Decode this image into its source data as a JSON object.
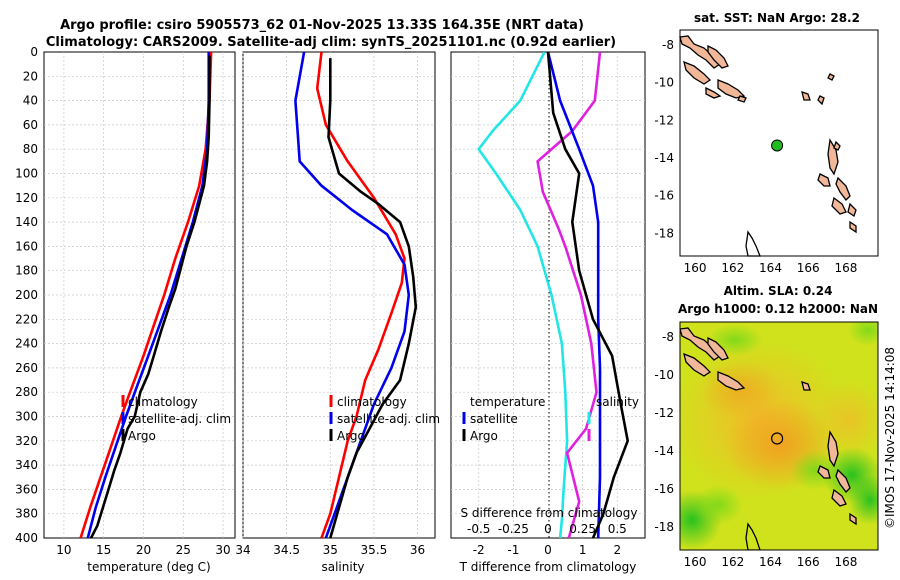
{
  "header": {
    "title_line1": "Argo profile: csiro 5905573_62 01-Nov-2025 13.33S 164.35E (NRT data)",
    "title_line2": "Climatology: CARS2009. Satellite-adj clim: synTS_20251101.nc (0.92d earlier)"
  },
  "colors": {
    "climatology": "#ff0000",
    "satellite": "#0000ee",
    "argo": "#000000",
    "temperature_diff": "#22e5e5",
    "salinity_diff": "#e020e0"
  },
  "legends": {
    "panel1": [
      "climatology",
      "satellite-adj. clim",
      "Argo"
    ],
    "panel2": [
      "climatology",
      "satellite-adj. clim",
      "Argo"
    ],
    "panel3_left": [
      "temperature",
      "satellite",
      "Argo"
    ],
    "panel3_right": [
      "salinity"
    ]
  },
  "map_top": {
    "title": "sat. SST: NaN Argo: 28.2",
    "marker": "float-position",
    "lon": 164.35,
    "lat": -13.33
  },
  "map_bottom": {
    "title_line1": "Altim. SLA: 0.24",
    "title_line2": "Argo h1000: 0.12 h2000: NaN",
    "lon": 164.35,
    "lat": -13.33
  },
  "credit": "©IMOS 17-Nov-2025 14:14:08",
  "chart_data": [
    {
      "type": "line",
      "name": "temperature-profile",
      "xlabel": "temperature (deg C)",
      "ylabel": "pressure",
      "xlim": [
        7.5,
        31.5
      ],
      "ylim": [
        400,
        0
      ],
      "xticks": [
        "10",
        "15",
        "20",
        "25",
        "30"
      ],
      "xtick_values": [
        10,
        15,
        20,
        25,
        30
      ],
      "yticks": [
        "0",
        "20",
        "40",
        "60",
        "80",
        "100",
        "120",
        "140",
        "160",
        "180",
        "200",
        "220",
        "240",
        "260",
        "280",
        "300",
        "320",
        "340",
        "360",
        "380",
        "400"
      ],
      "series": [
        {
          "name": "climatology",
          "color": "#ff0000",
          "x": [
            28.5,
            28.3,
            27.8,
            27.0,
            25.6,
            24.0,
            22.6,
            21.3,
            20.0,
            18.6,
            17.2,
            15.9,
            14.6,
            13.3,
            12.1
          ],
          "y": [
            0,
            40,
            80,
            110,
            140,
            170,
            200,
            225,
            250,
            275,
            300,
            325,
            350,
            375,
            400
          ]
        },
        {
          "name": "satellite-adj. clim",
          "color": "#0000ee",
          "x": [
            28.2,
            28.2,
            28.0,
            27.4,
            26.2,
            24.8,
            23.4,
            22.0,
            20.6,
            19.2,
            17.8,
            16.5,
            15.2,
            14.0,
            13.0
          ],
          "y": [
            0,
            40,
            80,
            110,
            140,
            170,
            200,
            225,
            250,
            275,
            300,
            325,
            350,
            375,
            400
          ]
        },
        {
          "name": "Argo",
          "color": "#000000",
          "x": [
            28.3,
            28.3,
            28.2,
            28.0,
            27.6,
            27.0,
            26.4,
            25.4,
            24.8,
            24.0,
            23.2,
            22.2,
            21.3,
            20.6,
            19.6,
            18.9,
            18.0,
            17.1,
            16.3,
            15.6,
            14.9,
            14.2,
            13.4
          ],
          "y": [
            3,
            40,
            70,
            90,
            110,
            125,
            140,
            160,
            175,
            195,
            210,
            230,
            250,
            265,
            280,
            300,
            310,
            330,
            345,
            360,
            375,
            390,
            400
          ]
        }
      ]
    },
    {
      "type": "line",
      "name": "salinity-profile",
      "xlabel": "salinity",
      "ylabel": "pressure",
      "xlim": [
        34.0,
        36.2
      ],
      "ylim": [
        400,
        0
      ],
      "xticks": [
        "34",
        "34.5",
        "35",
        "35.5",
        "36"
      ],
      "xtick_values": [
        34.0,
        34.5,
        35.0,
        35.5,
        36.0
      ],
      "series": [
        {
          "name": "climatology",
          "color": "#ff0000",
          "x": [
            34.9,
            34.85,
            34.95,
            35.2,
            35.5,
            35.75,
            35.85,
            35.82,
            35.7,
            35.55,
            35.4,
            35.3,
            35.2,
            35.1,
            35.0,
            34.9
          ],
          "y": [
            0,
            30,
            60,
            90,
            120,
            150,
            170,
            190,
            215,
            245,
            270,
            300,
            320,
            350,
            380,
            400
          ]
        },
        {
          "name": "satellite-adj. clim",
          "color": "#0000ee",
          "x": [
            34.7,
            34.6,
            34.63,
            34.65,
            34.9,
            35.25,
            35.65,
            35.85,
            35.9,
            35.85,
            35.7,
            35.5,
            35.35,
            35.2,
            35.05,
            34.95
          ],
          "y": [
            0,
            40,
            70,
            90,
            110,
            130,
            150,
            175,
            200,
            230,
            260,
            290,
            320,
            350,
            380,
            400
          ]
        },
        {
          "name": "Argo",
          "color": "#000000",
          "x": [
            35.0,
            35.0,
            34.98,
            35.1,
            35.35,
            35.55,
            35.8,
            35.9,
            35.95,
            35.98,
            35.9,
            35.8,
            35.6,
            35.45,
            35.3,
            35.2,
            35.1,
            35.0
          ],
          "y": [
            5,
            40,
            70,
            100,
            115,
            125,
            140,
            160,
            185,
            210,
            240,
            270,
            290,
            310,
            330,
            350,
            375,
            400
          ]
        }
      ]
    },
    {
      "type": "line",
      "name": "difference-profile",
      "xlabel": "T difference from climatology",
      "xlabel_top": "S difference from climatology",
      "xlim": [
        -2.8,
        2.8
      ],
      "ylim": [
        400,
        0
      ],
      "xticks": [
        "-2",
        "-1",
        "0",
        "1",
        "2"
      ],
      "xtick_values": [
        -2,
        -1,
        0,
        1,
        2
      ],
      "xticks_top": [
        "-0.5",
        "-0.25",
        "0",
        "0.25",
        "0.5"
      ],
      "xtick_top_values": [
        -2,
        -1,
        0,
        1,
        2
      ],
      "series": [
        {
          "name": "temperature",
          "color": "#22e5e5",
          "x": [
            -0.1,
            -0.8,
            -1.6,
            -2.0,
            -1.5,
            -0.8,
            -0.3,
            0.1,
            0.4,
            0.5,
            0.55,
            0.45,
            0.4,
            0.35
          ],
          "y": [
            0,
            40,
            65,
            80,
            100,
            130,
            160,
            200,
            240,
            280,
            320,
            360,
            385,
            400
          ]
        },
        {
          "name": "salinity",
          "color": "#e020e0",
          "x": [
            1.5,
            1.35,
            0.7,
            -0.3,
            -0.15,
            0.3,
            0.5,
            0.95,
            1.25,
            1.4,
            1.1,
            0.55,
            0.9,
            0.6
          ],
          "y": [
            0,
            40,
            65,
            90,
            115,
            145,
            160,
            200,
            240,
            280,
            310,
            330,
            370,
            400
          ]
        },
        {
          "name": "satellite",
          "color": "#0000ee",
          "x": [
            0.0,
            0.35,
            0.9,
            1.3,
            1.45,
            1.45,
            1.45,
            1.5,
            1.5,
            1.5,
            1.45
          ],
          "y": [
            0,
            40,
            80,
            110,
            140,
            180,
            220,
            260,
            300,
            350,
            400
          ]
        },
        {
          "name": "Argo",
          "color": "#000000",
          "x": [
            0.0,
            0.15,
            0.5,
            0.9,
            0.7,
            0.9,
            1.3,
            1.85,
            2.1,
            2.3,
            1.9,
            1.6,
            1.3
          ],
          "y": [
            0,
            50,
            80,
            100,
            140,
            180,
            220,
            250,
            290,
            320,
            350,
            380,
            400
          ]
        }
      ]
    }
  ],
  "map_axes": {
    "xticks": [
      "160",
      "162",
      "164",
      "166",
      "168"
    ],
    "xtick_values": [
      160,
      162,
      164,
      166,
      168
    ],
    "yticks": [
      "-8",
      "-10",
      "-12",
      "-14",
      "-16",
      "-18"
    ],
    "ytick_values": [
      -8,
      -10,
      -12,
      -14,
      -16,
      -18
    ],
    "xlim": [
      159.2,
      169.7
    ],
    "ylim": [
      -19.2,
      -7.2
    ]
  }
}
